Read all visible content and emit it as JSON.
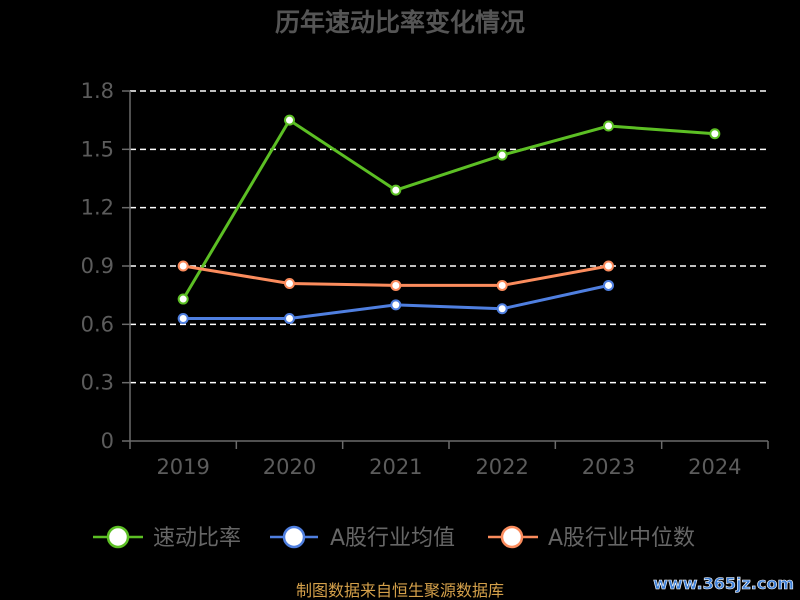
{
  "chart_data": {
    "type": "line",
    "title": "历年速动比率变化情况",
    "categories": [
      "2019",
      "2020",
      "2021",
      "2022",
      "2023",
      "2024"
    ],
    "series": [
      {
        "name": "速动比率",
        "color": "#5cbf24",
        "values": [
          0.73,
          1.65,
          1.29,
          1.47,
          1.62,
          1.58
        ]
      },
      {
        "name": "A股行业均值",
        "color": "#4f7fe0",
        "values": [
          0.63,
          0.63,
          0.7,
          0.68,
          0.8,
          null
        ]
      },
      {
        "name": "A股行业中位数",
        "color": "#fb8c5d",
        "values": [
          0.9,
          0.81,
          0.8,
          0.8,
          0.9,
          null
        ]
      }
    ],
    "xlabel": "",
    "ylabel": "",
    "ylim": [
      0,
      1.8
    ],
    "yticks": [
      0,
      0.3,
      0.6,
      0.9,
      1.2,
      1.5,
      1.8
    ],
    "grid": true,
    "grid_style": "dashed",
    "legend": "bottom"
  },
  "source": "制图数据来自恒生聚源数据库",
  "watermark": "www.365jz.com",
  "colors": {
    "background": "#000000",
    "axis": "#6b6b6b",
    "grid": "#ffffff",
    "marker_fill": "#ffffff"
  }
}
